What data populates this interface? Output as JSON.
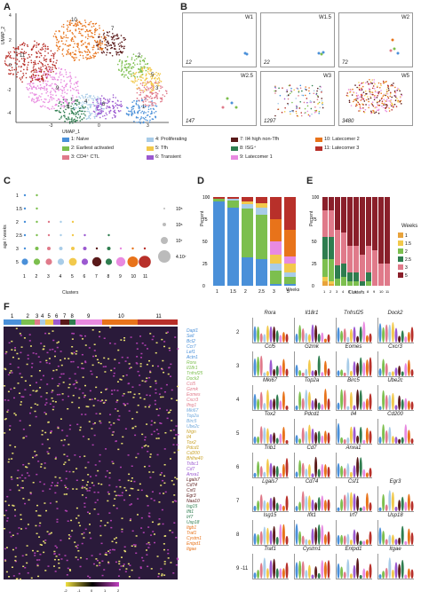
{
  "panels": {
    "A": "A",
    "B": "B",
    "C": "C",
    "D": "D",
    "E": "E",
    "F": "F"
  },
  "umap": {
    "xlabel": "UMAP_1",
    "ylabel": "UMAP_2",
    "xticks": [
      "-3",
      "0",
      "3"
    ],
    "yticks": [
      "4",
      "2",
      "0",
      "-2",
      "-4"
    ],
    "cluster_labels": [
      "1",
      "2",
      "3",
      "4",
      "5",
      "6",
      "7",
      "8",
      "9",
      "10",
      "11"
    ]
  },
  "weeks_panels": [
    {
      "w": "W1",
      "n": "12"
    },
    {
      "w": "W1.5",
      "n": "22"
    },
    {
      "w": "W2",
      "n": "72"
    },
    {
      "w": "W2.5",
      "n": "147"
    },
    {
      "w": "W3",
      "n": "1297"
    },
    {
      "w": "W5",
      "n": "3480"
    }
  ],
  "legend": [
    {
      "label": "1: Naive",
      "color": "#4a90d9"
    },
    {
      "label": "2: Earliest activated",
      "color": "#7cbf4e"
    },
    {
      "label": "3: CD4⁺ CTL",
      "color": "#e07a8a"
    },
    {
      "label": "4: Proliferating",
      "color": "#a8cce8"
    },
    {
      "label": "5: Tfh",
      "color": "#f2c94c"
    },
    {
      "label": "6: Transient",
      "color": "#9b59d0"
    },
    {
      "label": "7: Il4 high non-Tfh",
      "color": "#5a1a1a"
    },
    {
      "label": "8: ISG⁺",
      "color": "#2e7d4f"
    },
    {
      "label": "9: Latecomer 1",
      "color": "#e88ae0"
    },
    {
      "label": "10: Latecomer 2",
      "color": "#e8731a"
    },
    {
      "label": "11: Latecomer 3",
      "color": "#b8302a"
    }
  ],
  "chart_data": [
    {
      "type": "scatter",
      "panel": "C",
      "ylabel": "age / weeks",
      "xlabel": "Clusters",
      "yticks": [
        "1",
        "1.5",
        "2",
        "2.5",
        "3",
        "5"
      ],
      "categories": [
        "1",
        "2",
        "3",
        "4",
        "5",
        "6",
        "7",
        "8",
        "9",
        "10",
        "11"
      ],
      "size_legend": [
        "10⁵",
        "10⁶",
        "10⁷",
        "4.10⁷"
      ]
    },
    {
      "type": "bar",
      "panel": "D",
      "ylabel": "Percent",
      "xlabel": "Weeks",
      "categories": [
        "1",
        "1.5",
        "2",
        "2.5",
        "3",
        "5"
      ],
      "yticks": [
        "0",
        "25",
        "50",
        "75",
        "100"
      ],
      "ylim": [
        0,
        100
      ],
      "series": [
        {
          "name": "1",
          "values": [
            95,
            88,
            32,
            30,
            2,
            2
          ]
        },
        {
          "name": "2",
          "values": [
            3,
            8,
            55,
            50,
            15,
            8
          ]
        },
        {
          "name": "4",
          "values": [
            0,
            2,
            5,
            8,
            8,
            5
          ]
        },
        {
          "name": "5",
          "values": [
            0,
            0,
            3,
            5,
            10,
            10
          ]
        },
        {
          "name": "9",
          "values": [
            0,
            0,
            0,
            0,
            15,
            8
          ]
        },
        {
          "name": "10",
          "values": [
            0,
            0,
            0,
            0,
            25,
            30
          ]
        },
        {
          "name": "11",
          "values": [
            2,
            2,
            5,
            7,
            25,
            37
          ]
        }
      ]
    },
    {
      "type": "bar",
      "panel": "E",
      "ylabel": "Percent",
      "xlabel": "Clusters",
      "legend_title": "Weeks",
      "legend_labels": [
        "1",
        "1.5",
        "2",
        "2.5",
        "3",
        "5"
      ],
      "categories": [
        "1",
        "2",
        "3",
        "4",
        "5",
        "6",
        "7",
        "8",
        "9",
        "10",
        "11"
      ],
      "yticks": [
        "0",
        "25",
        "50",
        "75",
        "100"
      ],
      "ylim": [
        0,
        100
      ],
      "series": [
        {
          "name": "1",
          "values": [
            5,
            2,
            0,
            0,
            0,
            0,
            0,
            0,
            0,
            0,
            0
          ]
        },
        {
          "name": "1.5",
          "values": [
            5,
            3,
            0,
            0,
            0,
            0,
            0,
            0,
            0,
            0,
            0
          ]
        },
        {
          "name": "2",
          "values": [
            20,
            25,
            8,
            10,
            5,
            5,
            0,
            5,
            0,
            0,
            0
          ]
        },
        {
          "name": "2.5",
          "values": [
            25,
            25,
            15,
            15,
            10,
            10,
            5,
            10,
            0,
            0,
            0
          ]
        },
        {
          "name": "3",
          "values": [
            30,
            30,
            40,
            35,
            30,
            30,
            30,
            30,
            40,
            25,
            25
          ]
        },
        {
          "name": "5",
          "values": [
            15,
            15,
            37,
            40,
            55,
            55,
            65,
            55,
            60,
            75,
            75
          ]
        }
      ]
    }
  ],
  "heatmap": {
    "cluster_header": [
      "1",
      "2",
      "3",
      "4",
      "5",
      "6",
      "7",
      "8",
      "9",
      "10",
      "11"
    ],
    "gene_groups": [
      {
        "genes": [
          "Dapl1",
          "Sell",
          "Bcl2",
          "Ccr7",
          "Lef1",
          "Actn1"
        ],
        "color": "#4a90d9"
      },
      {
        "genes": [
          "Rora",
          "Il18r1",
          "Tnfrsf25",
          "Dock2"
        ],
        "color": "#7cbf4e"
      },
      {
        "genes": [
          "Ccl5",
          "Gzmk",
          "Eomes",
          "Cxcr3",
          "Ifng1"
        ],
        "color": "#e07a8a"
      },
      {
        "genes": [
          "Mki67",
          "Top2a",
          "Birc5",
          "Ube2c"
        ],
        "color": "#6fa8dc"
      },
      {
        "genes": [
          "Nrgn",
          "Il4",
          "Tox2",
          "Pdcd1",
          "Cd200",
          "Bhlhe40"
        ],
        "color": "#c9a227"
      },
      {
        "genes": [
          "Tribc1",
          "Cd7",
          "Anxa1"
        ],
        "color": "#9b59d0"
      },
      {
        "genes": [
          "Lgals7",
          "Cd74",
          "Csf1",
          "Egr3",
          "Naa10"
        ],
        "color": "#5a1a1a"
      },
      {
        "genes": [
          "Isg15",
          "Ifit1",
          "Irf7",
          "Usp18"
        ],
        "color": "#2e7d4f"
      },
      {
        "genes": [
          "Itgb1",
          "Traf1",
          "Cystm1",
          "Entpd1",
          "Itgae"
        ],
        "color": "#e8731a"
      }
    ],
    "colorbar_labels": [
      "-2",
      "-1",
      "0",
      "1",
      "2"
    ],
    "arrows": [
      "2",
      "3",
      "4",
      "5",
      "6",
      "7",
      "8",
      "9 -11"
    ]
  },
  "violins": [
    [
      "Rora",
      "Il18r1",
      "Tnfrsf25",
      "Dock2"
    ],
    [
      "Ccl5",
      "Gzmk",
      "Eomes",
      "Cxcr3"
    ],
    [
      "Mki67",
      "Top2a",
      "Birc5",
      "Ube2c"
    ],
    [
      "Tox2",
      "Pdcd1",
      "Il4",
      "Cd200"
    ],
    [
      "Trib1",
      "Cd7",
      "Anxa1",
      ""
    ],
    [
      "Lgals7",
      "Cd74",
      "Csf1",
      "Egr3"
    ],
    [
      "Isg15",
      "Ifit1",
      "Irf7",
      "Usp18"
    ],
    [
      "Traf1",
      "Cystm1",
      "Entpd1",
      "Itgae"
    ]
  ]
}
